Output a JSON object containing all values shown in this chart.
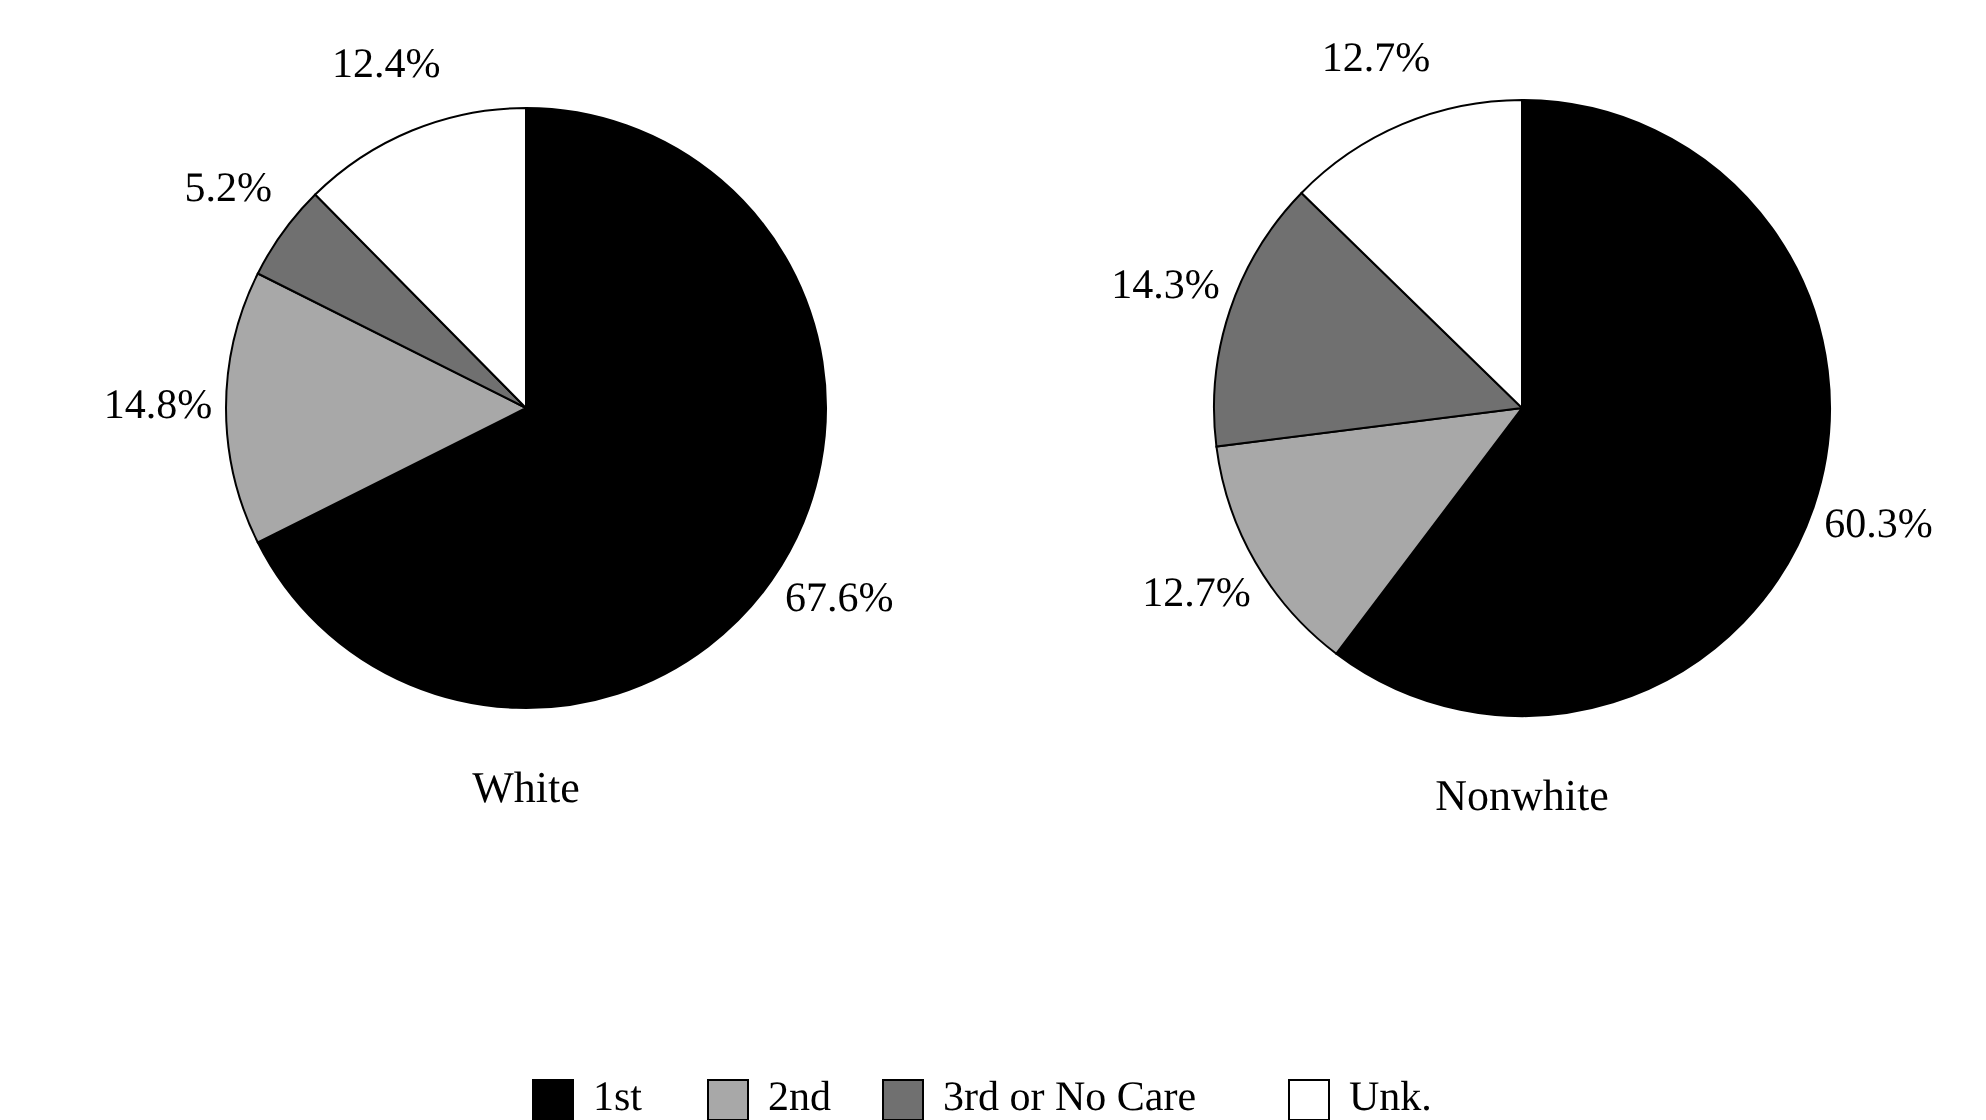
{
  "chart_data": [
    {
      "type": "pie",
      "title": "White",
      "categories": [
        "1st",
        "2nd",
        "3rd or No Care",
        "Unk."
      ],
      "values": [
        67.6,
        14.8,
        5.2,
        12.4
      ],
      "value_labels": [
        "67.6%",
        "14.8%",
        "5.2%",
        "12.4%"
      ],
      "colors": [
        "#000000",
        "#a8a8a8",
        "#707070",
        "#ffffff"
      ],
      "legend": "bottom"
    },
    {
      "type": "pie",
      "title": "Nonwhite",
      "values": [
        60.3,
        12.7,
        14.3,
        12.7
      ],
      "value_labels": [
        "60.3%",
        "12.7%",
        "14.3%",
        "12.7%"
      ],
      "colors": [
        "#000000",
        "#a8a8a8",
        "#707070",
        "#ffffff"
      ]
    }
  ]
}
